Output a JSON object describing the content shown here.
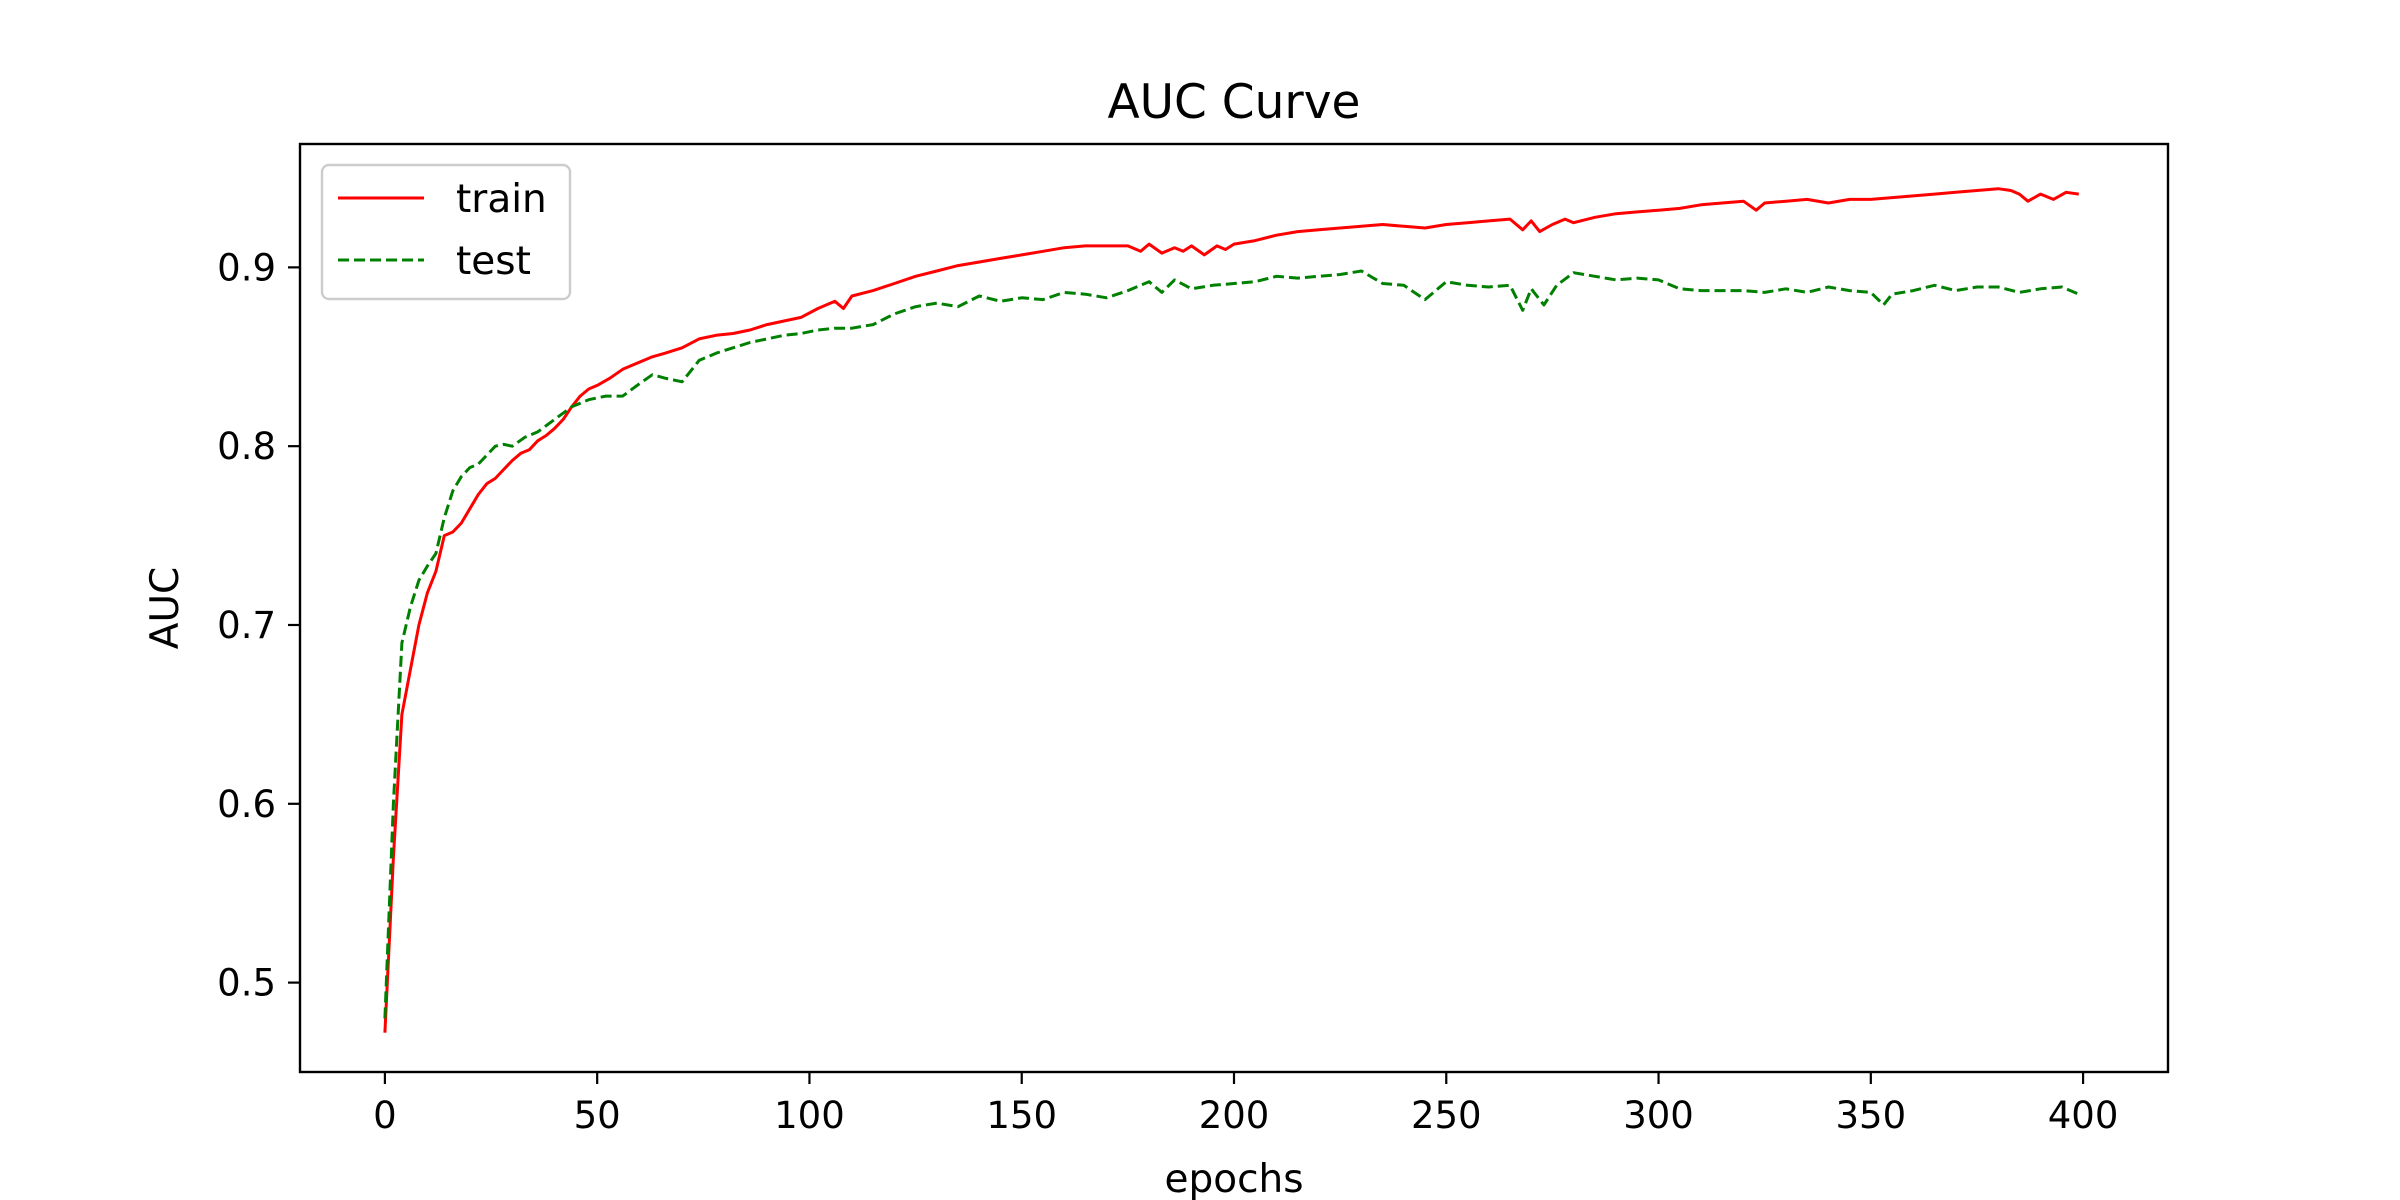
{
  "chart_data": {
    "type": "line",
    "title": "AUC Curve",
    "xlabel": "epochs",
    "ylabel": "AUC",
    "xlim": [
      -20,
      420
    ],
    "ylim": [
      0.45,
      0.969
    ],
    "xticks": [
      0,
      50,
      100,
      150,
      200,
      250,
      300,
      350,
      400
    ],
    "yticks": [
      0.5,
      0.6,
      0.7,
      0.8,
      0.9
    ],
    "grid": false,
    "legend_position": "upper left",
    "series": [
      {
        "name": "train",
        "color": "#ff0000",
        "style": "solid",
        "x": [
          0,
          2,
          4,
          6,
          8,
          10,
          12,
          14,
          16,
          18,
          20,
          22,
          24,
          26,
          28,
          30,
          32,
          34,
          36,
          38,
          40,
          42,
          44,
          46,
          48,
          50,
          53,
          56,
          60,
          63,
          66,
          70,
          74,
          78,
          82,
          86,
          90,
          94,
          98,
          102,
          106,
          108,
          110,
          115,
          120,
          125,
          130,
          135,
          140,
          145,
          150,
          155,
          160,
          165,
          170,
          175,
          178,
          180,
          183,
          186,
          188,
          190,
          193,
          196,
          198,
          200,
          205,
          210,
          215,
          220,
          225,
          230,
          235,
          240,
          245,
          250,
          255,
          260,
          265,
          268,
          270,
          272,
          275,
          278,
          280,
          285,
          290,
          295,
          300,
          305,
          310,
          315,
          320,
          323,
          325,
          330,
          335,
          340,
          345,
          350,
          355,
          360,
          365,
          370,
          375,
          380,
          383,
          385,
          387,
          390,
          393,
          396,
          399
        ],
        "values": [
          0.472,
          0.57,
          0.65,
          0.675,
          0.7,
          0.718,
          0.73,
          0.75,
          0.752,
          0.757,
          0.765,
          0.773,
          0.779,
          0.782,
          0.787,
          0.792,
          0.796,
          0.798,
          0.803,
          0.806,
          0.81,
          0.815,
          0.822,
          0.828,
          0.832,
          0.834,
          0.838,
          0.843,
          0.847,
          0.85,
          0.852,
          0.855,
          0.86,
          0.862,
          0.863,
          0.865,
          0.868,
          0.87,
          0.872,
          0.877,
          0.881,
          0.877,
          0.884,
          0.887,
          0.891,
          0.895,
          0.898,
          0.901,
          0.903,
          0.905,
          0.907,
          0.909,
          0.911,
          0.912,
          0.912,
          0.912,
          0.909,
          0.913,
          0.908,
          0.911,
          0.909,
          0.912,
          0.907,
          0.912,
          0.91,
          0.913,
          0.915,
          0.918,
          0.92,
          0.921,
          0.922,
          0.923,
          0.924,
          0.923,
          0.922,
          0.924,
          0.925,
          0.926,
          0.927,
          0.921,
          0.926,
          0.92,
          0.924,
          0.927,
          0.925,
          0.928,
          0.93,
          0.931,
          0.932,
          0.933,
          0.935,
          0.936,
          0.937,
          0.932,
          0.936,
          0.937,
          0.938,
          0.936,
          0.938,
          0.938,
          0.939,
          0.94,
          0.941,
          0.942,
          0.943,
          0.944,
          0.943,
          0.941,
          0.937,
          0.941,
          0.938,
          0.942,
          0.941
        ]
      },
      {
        "name": "test",
        "color": "#008000",
        "style": "dashed",
        "x": [
          0,
          2,
          4,
          6,
          8,
          10,
          12,
          14,
          16,
          18,
          20,
          22,
          24,
          26,
          28,
          30,
          33,
          36,
          40,
          44,
          48,
          52,
          56,
          60,
          63,
          66,
          70,
          74,
          78,
          82,
          86,
          90,
          94,
          98,
          102,
          106,
          110,
          115,
          120,
          125,
          130,
          135,
          140,
          145,
          150,
          155,
          160,
          165,
          170,
          175,
          180,
          183,
          186,
          190,
          195,
          200,
          205,
          210,
          215,
          220,
          225,
          230,
          235,
          240,
          245,
          250,
          255,
          260,
          265,
          268,
          270,
          273,
          276,
          280,
          285,
          290,
          295,
          300,
          305,
          310,
          315,
          320,
          325,
          330,
          335,
          340,
          345,
          350,
          353,
          355,
          360,
          365,
          370,
          375,
          380,
          385,
          390,
          395,
          399
        ],
        "values": [
          0.48,
          0.6,
          0.69,
          0.71,
          0.725,
          0.733,
          0.74,
          0.76,
          0.775,
          0.783,
          0.788,
          0.79,
          0.795,
          0.8,
          0.801,
          0.8,
          0.805,
          0.808,
          0.815,
          0.822,
          0.826,
          0.828,
          0.828,
          0.835,
          0.84,
          0.838,
          0.836,
          0.848,
          0.852,
          0.855,
          0.858,
          0.86,
          0.862,
          0.863,
          0.865,
          0.866,
          0.866,
          0.868,
          0.874,
          0.878,
          0.88,
          0.878,
          0.884,
          0.881,
          0.883,
          0.882,
          0.886,
          0.885,
          0.883,
          0.887,
          0.892,
          0.886,
          0.893,
          0.888,
          0.89,
          0.891,
          0.892,
          0.895,
          0.894,
          0.895,
          0.896,
          0.898,
          0.891,
          0.89,
          0.882,
          0.892,
          0.89,
          0.889,
          0.89,
          0.876,
          0.888,
          0.879,
          0.89,
          0.897,
          0.895,
          0.893,
          0.894,
          0.893,
          0.888,
          0.887,
          0.887,
          0.887,
          0.886,
          0.888,
          0.886,
          0.889,
          0.887,
          0.886,
          0.879,
          0.885,
          0.887,
          0.89,
          0.887,
          0.889,
          0.889,
          0.886,
          0.888,
          0.889,
          0.885
        ]
      }
    ]
  }
}
